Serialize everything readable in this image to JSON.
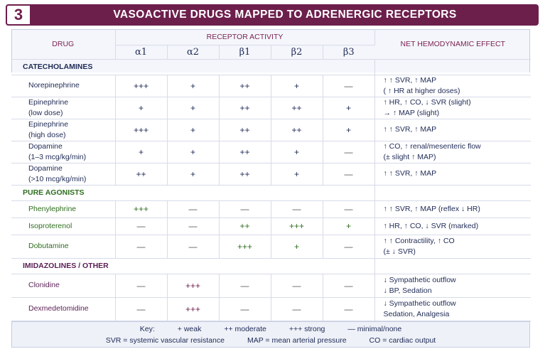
{
  "banner": {
    "number": "3",
    "title": "VASOACTIVE DRUGS MAPPED TO ADRENERGIC RECEPTORS"
  },
  "header": {
    "drug": "DRUG",
    "receptor_activity": "RECEPTOR ACTIVITY",
    "receptors": [
      "α1",
      "α2",
      "β1",
      "β2",
      "β3"
    ],
    "net_effect": "NET HEMODYNAMIC EFFECT"
  },
  "sections": [
    {
      "label": "CATECHOLAMINES",
      "rows": [
        {
          "drug": [
            "Norepinephrine"
          ],
          "values": [
            "+++",
            "+",
            "++",
            "+",
            "—"
          ],
          "effect": [
            "↑ ↑  SVR,  ↑ MAP",
            "( ↑  HR at higher doses)"
          ]
        },
        {
          "drug": [
            "Epinephrine",
            "(low dose)"
          ],
          "values": [
            "+",
            "+",
            "++",
            "++",
            "+"
          ],
          "effect": [
            "↑  HR,  ↑ CO,  ↓ SVR (slight)",
            "→  ↑  MAP (slight)"
          ]
        },
        {
          "drug": [
            "Epinephrine",
            "(high dose)"
          ],
          "values": [
            "+++",
            "+",
            "++",
            "++",
            "+"
          ],
          "effect": [
            "↑ ↑  SVR,  ↑ MAP"
          ]
        },
        {
          "drug": [
            "Dopamine",
            "(1–3 mcg/kg/min)"
          ],
          "values": [
            "+",
            "+",
            "++",
            "+",
            "—"
          ],
          "effect": [
            "↑ CO,  ↑ renal/mesenteric flow",
            "(± slight  ↑  MAP)"
          ]
        },
        {
          "drug": [
            "Dopamine",
            "(>10 mcg/kg/min)"
          ],
          "values": [
            "++",
            "+",
            "++",
            "+",
            "—"
          ],
          "effect": [
            "↑ ↑  SVR,  ↑  MAP"
          ]
        }
      ]
    },
    {
      "label": "PURE AGONISTS",
      "rows": [
        {
          "drug": [
            "Phenylephrine"
          ],
          "values": [
            "+++",
            "—",
            "—",
            "—",
            "—"
          ],
          "effect": [
            "↑ ↑  SVR,  ↑ MAP (reflex ↓ HR)"
          ]
        },
        {
          "drug": [
            "Isoproterenol"
          ],
          "values": [
            "—",
            "—",
            "++",
            "+++",
            "+"
          ],
          "effect": [
            "↑  HR,  ↑ CO,  ↓ SVR (marked)"
          ]
        },
        {
          "drug": [
            "Dobutamine"
          ],
          "values": [
            "—",
            "—",
            "+++",
            "+",
            "—"
          ],
          "effect": [
            "↑ ↑  Contractility,  ↑ CO",
            "(±  ↓  SVR)"
          ]
        }
      ]
    },
    {
      "label": "IMIDAZOLINES / OTHER",
      "rows": [
        {
          "drug": [
            "Clonidine"
          ],
          "values": [
            "—",
            "+++",
            "—",
            "—",
            "—"
          ],
          "effect": [
            "↓  Sympathetic  outflow",
            "↓  BP, Sedation"
          ]
        },
        {
          "drug": [
            "Dexmedetomidine"
          ],
          "values": [
            "—",
            "+++",
            "—",
            "—",
            "—"
          ],
          "effect": [
            "↓  Sympathetic  outflow",
            "Sedation,  Analgesia"
          ]
        }
      ]
    }
  ],
  "legend": {
    "key_label": "Key:",
    "weak": "+ weak",
    "moderate": "++ moderate",
    "strong": "+++ strong",
    "none": "— minimal/none",
    "svr": "SVR = systemic vascular resistance",
    "map": "MAP = mean arterial pressure",
    "co": "CO = cardiac output"
  },
  "colors": {
    "banner": "#6d1f4c",
    "text": "#1f2a55",
    "agonists": "#2f6e1f",
    "imidazolines": "#5b1f55"
  }
}
